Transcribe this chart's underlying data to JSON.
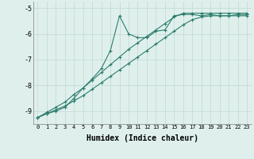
{
  "xlabel": "Humidex (Indice chaleur)",
  "x_values": [
    0,
    1,
    2,
    3,
    4,
    5,
    6,
    7,
    8,
    9,
    10,
    11,
    12,
    13,
    14,
    15,
    16,
    17,
    18,
    19,
    20,
    21,
    22,
    23
  ],
  "line1": [
    -9.25,
    -9.1,
    -9.0,
    -8.85,
    -8.5,
    -8.1,
    -7.75,
    -7.35,
    -6.65,
    -5.3,
    -6.0,
    -6.15,
    -6.15,
    -5.9,
    -5.85,
    -5.3,
    -5.25,
    -5.25,
    -5.3,
    -5.25,
    -5.3,
    -5.3,
    -5.25,
    -5.25
  ],
  "line2": [
    -9.25,
    -9.05,
    -8.85,
    -8.65,
    -8.35,
    -8.1,
    -7.8,
    -7.5,
    -7.2,
    -6.9,
    -6.6,
    -6.35,
    -6.1,
    -5.85,
    -5.6,
    -5.35,
    -5.2,
    -5.2,
    -5.2,
    -5.2,
    -5.2,
    -5.2,
    -5.2,
    -5.2
  ],
  "line3": [
    -9.25,
    -9.1,
    -8.95,
    -8.8,
    -8.6,
    -8.4,
    -8.15,
    -7.9,
    -7.65,
    -7.4,
    -7.15,
    -6.9,
    -6.65,
    -6.4,
    -6.15,
    -5.9,
    -5.65,
    -5.45,
    -5.35,
    -5.3,
    -5.3,
    -5.3,
    -5.3,
    -5.3
  ],
  "bg_color": "#dff0ec",
  "line_color": "#2d7d6e",
  "grid_color": "#c0d8d2",
  "ylim": [
    -9.5,
    -4.75
  ],
  "yticks": [
    -9,
    -8,
    -7,
    -6,
    -5
  ],
  "xticks": [
    0,
    1,
    2,
    3,
    4,
    5,
    6,
    7,
    8,
    9,
    10,
    11,
    12,
    13,
    14,
    15,
    16,
    17,
    18,
    19,
    20,
    21,
    22,
    23
  ]
}
